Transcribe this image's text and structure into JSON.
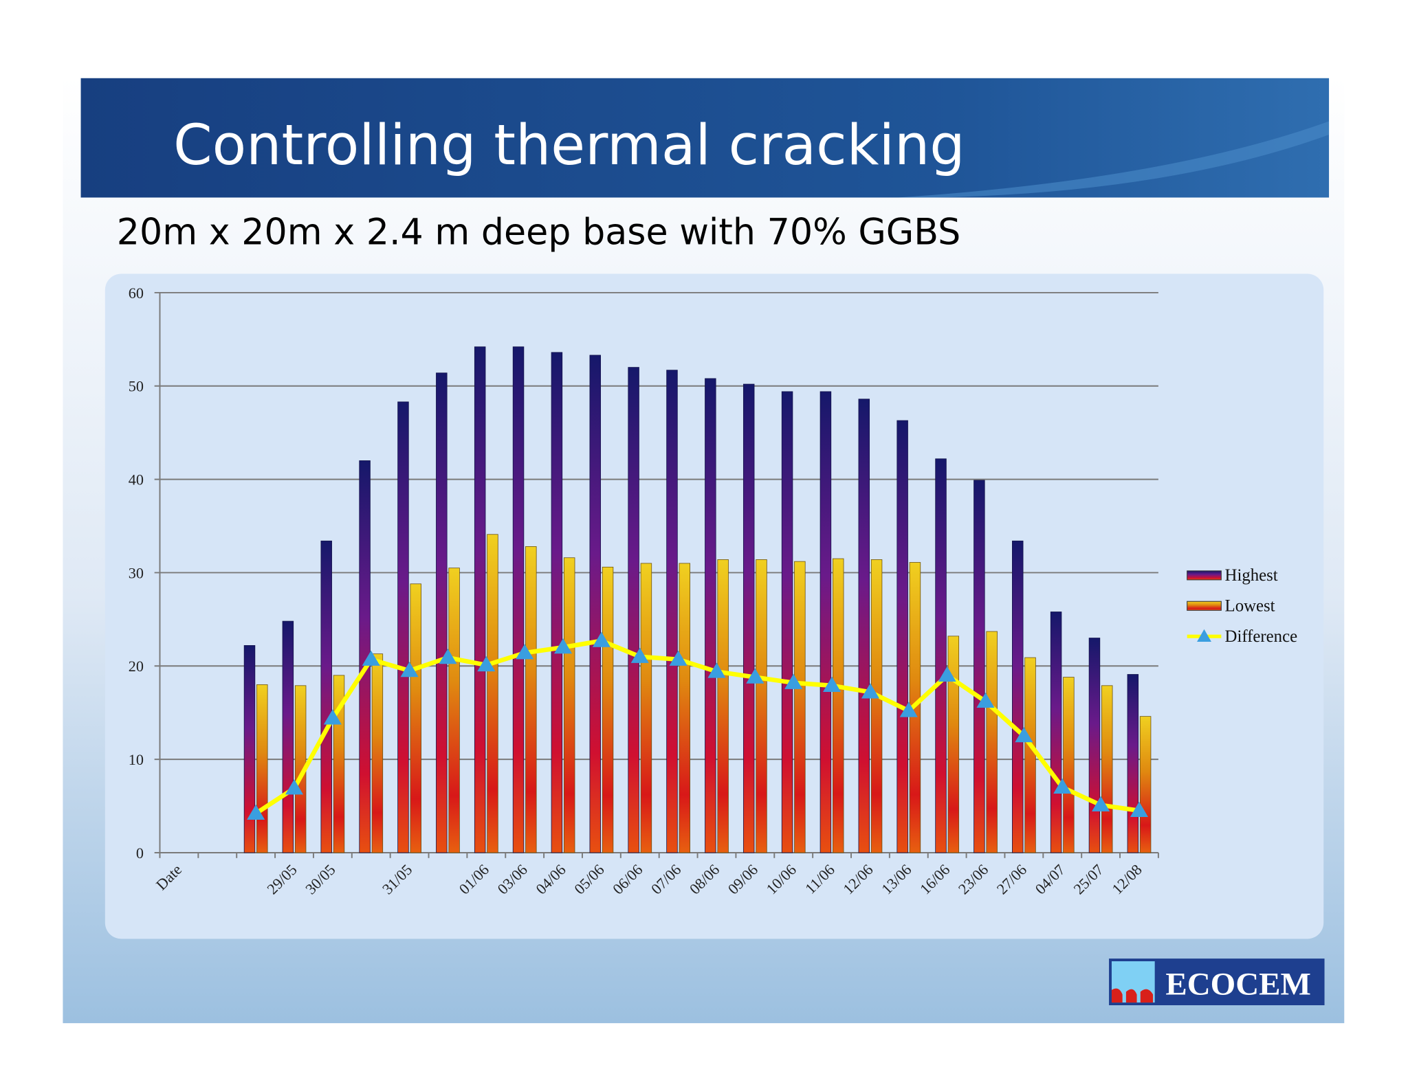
{
  "chart_data": {
    "type": "bar",
    "title": "Controlling thermal cracking",
    "subtitle": "20m x 20m x 2.4 m deep base with 70% GGBS",
    "categories": [
      "Date",
      null,
      null,
      "29/05",
      "30/05",
      null,
      "31/05",
      null,
      "01/06",
      "03/06",
      "04/06",
      "05/06",
      "06/06",
      "07/06",
      "08/06",
      "09/06",
      "10/06",
      "11/06",
      "12/06",
      "13/06",
      "16/06",
      "23/06",
      "27/06",
      "04/07",
      "25/07",
      "12/08"
    ],
    "series": [
      {
        "name": "Highest",
        "type": "bar",
        "color": "#1b1a72",
        "values": [
          null,
          null,
          22.2,
          24.8,
          33.4,
          42,
          48.3,
          51.4,
          54.2,
          54.2,
          53.6,
          53.3,
          52,
          51.7,
          50.8,
          50.2,
          49.4,
          49.4,
          48.6,
          46.3,
          42.2,
          39.9,
          33.4,
          25.8,
          23,
          19.1
        ]
      },
      {
        "name": "Lowest",
        "type": "bar",
        "color": "#e0b020",
        "values": [
          null,
          null,
          18,
          17.9,
          19,
          21.3,
          28.8,
          30.5,
          34.1,
          32.8,
          31.6,
          30.6,
          31,
          31,
          31.4,
          31.4,
          31.2,
          31.5,
          31.4,
          31.1,
          23.2,
          23.7,
          20.9,
          18.8,
          17.9,
          14.6
        ]
      },
      {
        "name": "Difference",
        "type": "line",
        "color": "#ffff00",
        "marker_color": "#3a9ee0",
        "values": [
          null,
          null,
          4.2,
          6.9,
          14.4,
          20.7,
          19.5,
          20.9,
          20.1,
          21.4,
          22,
          22.7,
          21,
          20.7,
          19.4,
          18.8,
          18.2,
          17.9,
          17.2,
          15.2,
          19,
          16.2,
          12.5,
          7,
          5.1,
          4.5
        ]
      }
    ],
    "ylim": [
      0,
      60
    ],
    "yticks": [
      0,
      10,
      20,
      30,
      40,
      50,
      60
    ],
    "grid": true,
    "legend": "right"
  },
  "logo": "ECOCEM"
}
